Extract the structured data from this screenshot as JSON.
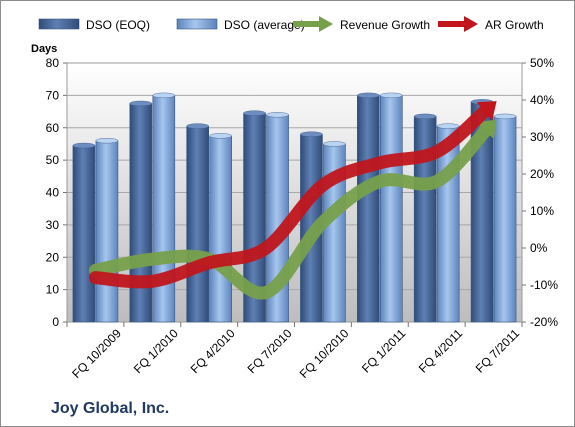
{
  "chart_data": {
    "type": "bar",
    "title": "",
    "company": "Joy Global, Inc.",
    "ylabel": "Days",
    "ylim": [
      0,
      80
    ],
    "yticks": [
      "0",
      "10",
      "20",
      "30",
      "40",
      "50",
      "60",
      "70",
      "80"
    ],
    "y2lim": [
      -20,
      50
    ],
    "y2ticks": [
      "-20%",
      "-10%",
      "0%",
      "10%",
      "20%",
      "30%",
      "40%",
      "50%"
    ],
    "categories": [
      "FQ 10/2009",
      "FQ 1/2010",
      "FQ 4/2010",
      "FQ 7/2010",
      "FQ 10/2010",
      "FQ 1/2011",
      "FQ 4/2011",
      "FQ 7/2011"
    ],
    "legend_position": "top",
    "series": [
      {
        "name": "DSO (EOQ)",
        "type": "bar",
        "axis": "left",
        "values": [
          54.5,
          67.5,
          60.5,
          64.5,
          58,
          70,
          63.5,
          68
        ],
        "color": "#4f6fa3"
      },
      {
        "name": "DSO (average)",
        "type": "bar",
        "axis": "left",
        "values": [
          56,
          70,
          57.5,
          64,
          55,
          70,
          60.5,
          63.5
        ],
        "color": "#8fb4e3"
      },
      {
        "name": "Revenue Growth",
        "type": "arrow",
        "axis": "right",
        "unit": "%",
        "values": [
          -6,
          -3,
          -3,
          -12,
          7,
          18,
          18,
          34
        ],
        "color": "#77a04b"
      },
      {
        "name": "AR Growth",
        "type": "arrow",
        "axis": "right",
        "unit": "%",
        "values": [
          -8,
          -9,
          -4,
          0,
          17,
          23,
          26,
          39
        ],
        "color": "#c0161c"
      }
    ]
  }
}
